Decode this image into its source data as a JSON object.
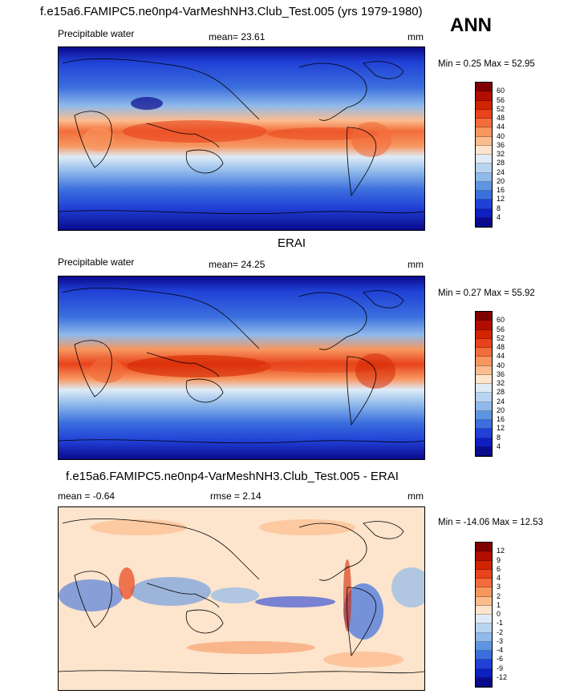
{
  "header": {
    "title": "f.e15a6.FAMIPC5.ne0np4-VarMeshNH3.Club_Test.005 (yrs 1979-1980)",
    "season": "ANN"
  },
  "panels": [
    {
      "variable": "Precipitable water",
      "stat": "mean=  23.61",
      "units": "mm",
      "minmax": "Min =   0.25 Max =  52.95",
      "colorbar": {
        "labels": [
          "60",
          "56",
          "52",
          "48",
          "44",
          "40",
          "36",
          "32",
          "28",
          "24",
          "20",
          "16",
          "12",
          "8",
          "4"
        ],
        "colors": [
          "#7f0000",
          "#b10d00",
          "#d32400",
          "#e8431a",
          "#f26d3b",
          "#f7965f",
          "#fbbd8f",
          "#fde4cc",
          "#deebf7",
          "#b8d4f0",
          "#8fb9ea",
          "#5e95e2",
          "#3b6fde",
          "#2040d6",
          "#0e1ec0",
          "#0a0a8c"
        ]
      }
    },
    {
      "subtitle": "ERAI",
      "variable": "Precipitable water",
      "stat": "mean=  24.25",
      "units": "mm",
      "minmax": "Min =   0.27 Max =  55.92",
      "colorbar": {
        "labels": [
          "60",
          "56",
          "52",
          "48",
          "44",
          "40",
          "36",
          "32",
          "28",
          "24",
          "20",
          "16",
          "12",
          "8",
          "4"
        ],
        "colors": [
          "#7f0000",
          "#b10d00",
          "#d32400",
          "#e8431a",
          "#f26d3b",
          "#f7965f",
          "#fbbd8f",
          "#fde4cc",
          "#deebf7",
          "#b8d4f0",
          "#8fb9ea",
          "#5e95e2",
          "#3b6fde",
          "#2040d6",
          "#0e1ec0",
          "#0a0a8c"
        ]
      }
    },
    {
      "subtitle": "f.e15a6.FAMIPC5.ne0np4-VarMeshNH3.Club_Test.005 - ERAI",
      "stat_left": "mean =  -0.64",
      "stat": "rmse =   2.14",
      "units": "mm",
      "minmax": "Min = -14.06 Max =  12.53",
      "colorbar": {
        "labels": [
          "12",
          "9",
          "6",
          "4",
          "3",
          "2",
          "1",
          "0",
          "-1",
          "-2",
          "-3",
          "-4",
          "-6",
          "-9",
          "-12"
        ],
        "colors": [
          "#7f0000",
          "#b10d00",
          "#d32400",
          "#e8431a",
          "#f26d3b",
          "#f7965f",
          "#fbbd8f",
          "#fde4cc",
          "#deebf7",
          "#b8d4f0",
          "#8fb9ea",
          "#5e95e2",
          "#3b6fde",
          "#2040d6",
          "#0e1ec0",
          "#0a0a8c"
        ]
      }
    }
  ]
}
